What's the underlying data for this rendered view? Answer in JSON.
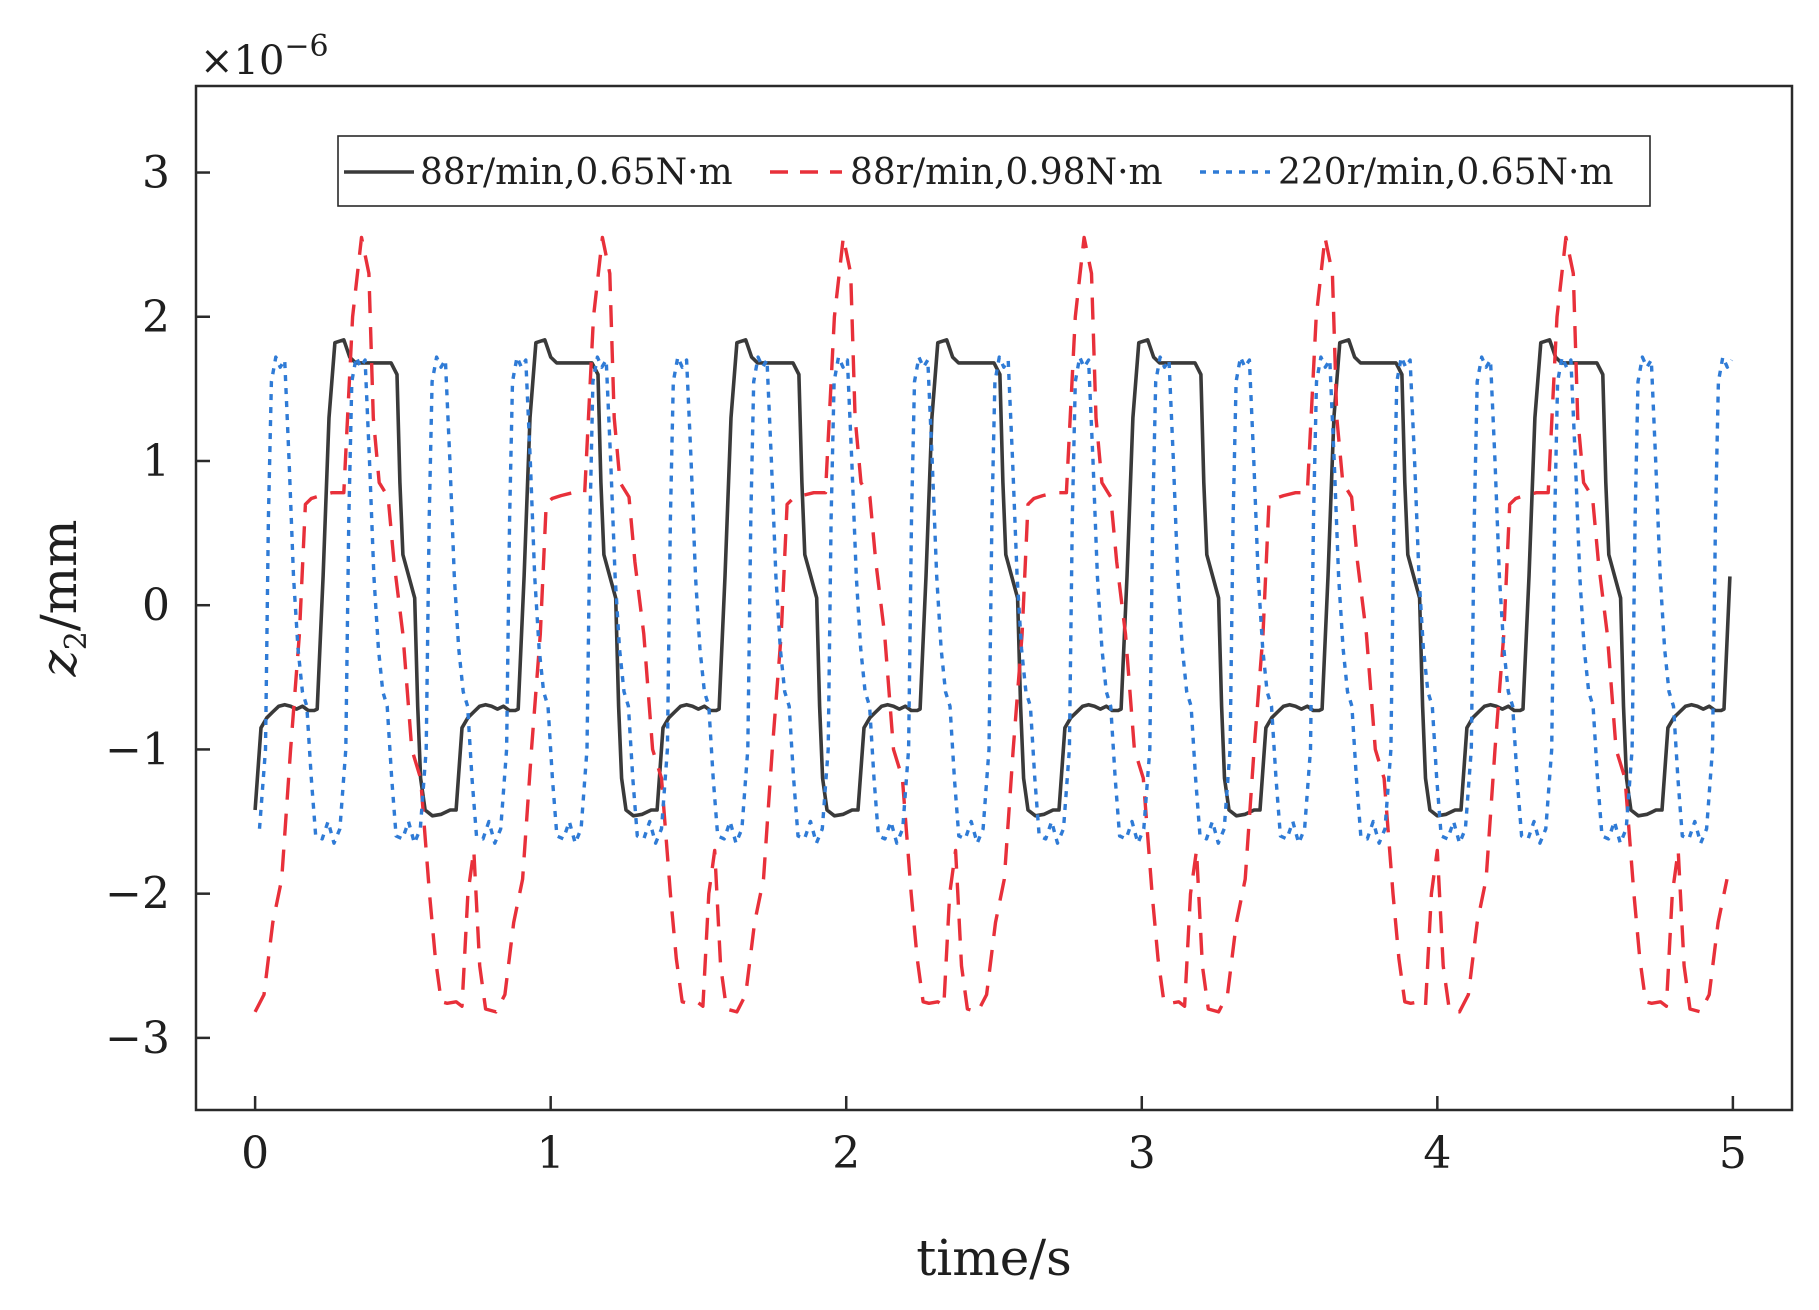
{
  "chart_data": {
    "type": "line",
    "title": "",
    "xlabel": "time/s",
    "ylabel": {
      "base": "z",
      "subscript": "2",
      "unit": "/mm"
    },
    "y_multiplier": "×10",
    "y_multiplier_exponent": "−6",
    "xlim": [
      -0.2,
      5.2
    ],
    "ylim": [
      -3.5,
      3.6
    ],
    "x_ticks": [
      0,
      1,
      2,
      3,
      4,
      5
    ],
    "y_ticks": [
      -3,
      -2,
      -1,
      0,
      1,
      2,
      3
    ],
    "grid": false,
    "legend_position": "top",
    "series": [
      {
        "name": "88r/min,0.65N·m",
        "color": "#3a3a3a",
        "style": "solid",
        "period": 0.68,
        "offset": 0,
        "shape": [
          [
            0.0,
            -1.42
          ],
          [
            0.02,
            -0.85
          ],
          [
            0.04,
            -0.78
          ],
          [
            0.06,
            -0.74
          ],
          [
            0.08,
            -0.7
          ],
          [
            0.1,
            -0.69
          ],
          [
            0.12,
            -0.7
          ],
          [
            0.14,
            -0.72
          ],
          [
            0.16,
            -0.7
          ],
          [
            0.18,
            -0.73
          ],
          [
            0.2,
            -0.73
          ],
          [
            0.21,
            -0.72
          ],
          [
            0.23,
            0.2
          ],
          [
            0.25,
            1.3
          ],
          [
            0.27,
            1.82
          ],
          [
            0.3,
            1.84
          ],
          [
            0.32,
            1.72
          ],
          [
            0.34,
            1.68
          ],
          [
            0.38,
            1.68
          ],
          [
            0.42,
            1.68
          ],
          [
            0.46,
            1.68
          ],
          [
            0.48,
            1.6
          ],
          [
            0.49,
            0.85
          ],
          [
            0.5,
            0.35
          ],
          [
            0.52,
            0.2
          ],
          [
            0.54,
            0.05
          ],
          [
            0.55,
            -0.7
          ],
          [
            0.56,
            -1.2
          ],
          [
            0.575,
            -1.42
          ],
          [
            0.6,
            -1.46
          ],
          [
            0.63,
            -1.45
          ],
          [
            0.66,
            -1.42
          ],
          [
            0.68,
            -1.42
          ]
        ]
      },
      {
        "name": "88r/min,0.98N·m",
        "color": "#e8303a",
        "style": "dashed",
        "period": 0.815,
        "offset": 0,
        "shape": [
          [
            0.0,
            -2.82
          ],
          [
            0.03,
            -2.7
          ],
          [
            0.06,
            -2.2
          ],
          [
            0.09,
            -1.9
          ],
          [
            0.12,
            -1.0
          ],
          [
            0.15,
            -0.2
          ],
          [
            0.17,
            0.7
          ],
          [
            0.19,
            0.74
          ],
          [
            0.22,
            0.76
          ],
          [
            0.26,
            0.78
          ],
          [
            0.3,
            0.78
          ],
          [
            0.33,
            2.0
          ],
          [
            0.36,
            2.55
          ],
          [
            0.385,
            2.3
          ],
          [
            0.4,
            1.3
          ],
          [
            0.42,
            0.85
          ],
          [
            0.45,
            0.75
          ],
          [
            0.47,
            0.3
          ],
          [
            0.5,
            -0.2
          ],
          [
            0.53,
            -1.0
          ],
          [
            0.56,
            -1.2
          ],
          [
            0.59,
            -2.0
          ],
          [
            0.61,
            -2.45
          ],
          [
            0.63,
            -2.75
          ],
          [
            0.65,
            -2.76
          ],
          [
            0.68,
            -2.75
          ],
          [
            0.7,
            -2.78
          ],
          [
            0.72,
            -2.0
          ],
          [
            0.74,
            -1.7
          ],
          [
            0.76,
            -2.5
          ],
          [
            0.78,
            -2.8
          ],
          [
            0.815,
            -2.82
          ]
        ]
      },
      {
        "name": "220r/min,0.65N·m",
        "color": "#2f7bd6",
        "style": "dotted",
        "period": 0.272,
        "offset": 0.045,
        "shape": [
          [
            0.0,
            -1.62
          ],
          [
            0.02,
            -1.5
          ],
          [
            0.04,
            -1.65
          ],
          [
            0.06,
            -1.55
          ],
          [
            0.08,
            -1.0
          ],
          [
            0.09,
            0.6
          ],
          [
            0.1,
            1.55
          ],
          [
            0.115,
            1.72
          ],
          [
            0.13,
            1.65
          ],
          [
            0.145,
            1.7
          ],
          [
            0.16,
            1.0
          ],
          [
            0.175,
            0.2
          ],
          [
            0.19,
            -0.3
          ],
          [
            0.205,
            -0.6
          ],
          [
            0.22,
            -0.7
          ],
          [
            0.235,
            -1.2
          ],
          [
            0.25,
            -1.6
          ],
          [
            0.272,
            -1.62
          ]
        ]
      }
    ]
  }
}
